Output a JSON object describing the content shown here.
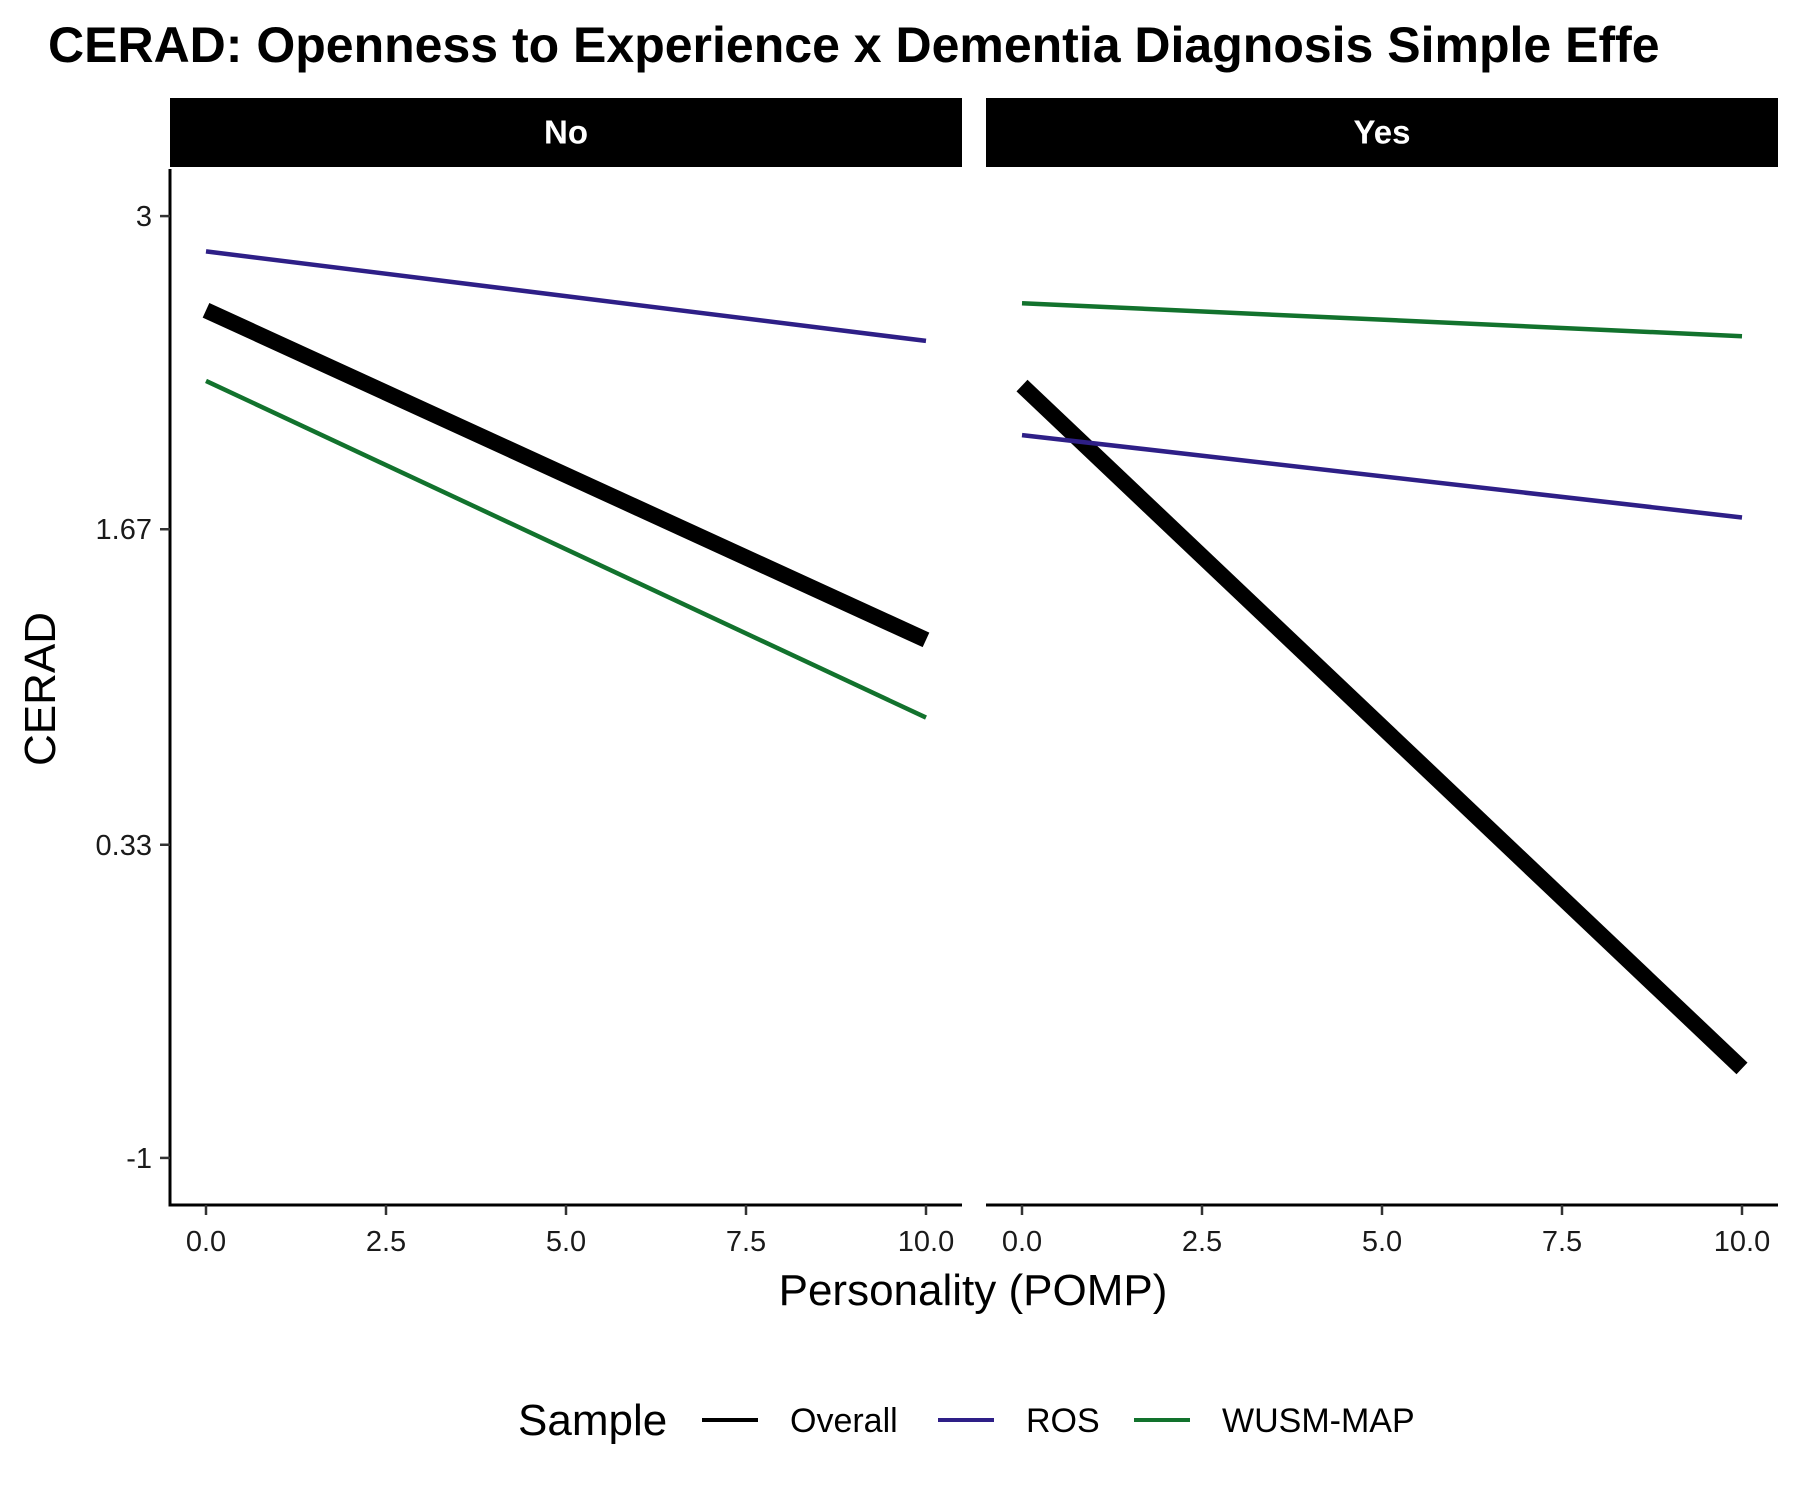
{
  "chart_data": {
    "type": "line",
    "title": "CERAD: Openness to Experience x Dementia Diagnosis Simple Effe",
    "xlabel": "Personality (POMP)",
    "ylabel": "CERAD",
    "x_ticks": [
      "0.0",
      "2.5",
      "5.0",
      "7.5",
      "10.0"
    ],
    "y_ticks": [
      "3",
      "1.67",
      "0.33",
      "-1"
    ],
    "xlim": [
      -0.5,
      10.5
    ],
    "ylim": [
      -1.2,
      3.2
    ],
    "grid": false,
    "legend": {
      "title": "Sample",
      "position": "bottom",
      "entries": [
        "Overall",
        "ROS",
        "WUSM-MAP"
      ]
    },
    "panels": [
      {
        "label": "No",
        "series": [
          {
            "name": "Overall",
            "color": "#000000",
            "x": [
              0,
              10
            ],
            "y": [
              2.6,
              1.2
            ]
          },
          {
            "name": "ROS",
            "color": "#2E1F87",
            "x": [
              0,
              10
            ],
            "y": [
              2.85,
              2.47
            ]
          },
          {
            "name": "WUSM-MAP",
            "color": "#12722D",
            "x": [
              0,
              10
            ],
            "y": [
              2.3,
              0.87
            ]
          }
        ]
      },
      {
        "label": "Yes",
        "series": [
          {
            "name": "Overall",
            "color": "#000000",
            "x": [
              0,
              10
            ],
            "y": [
              2.28,
              -0.62
            ]
          },
          {
            "name": "ROS",
            "color": "#2E1F87",
            "x": [
              0,
              10
            ],
            "y": [
              2.07,
              1.72
            ]
          },
          {
            "name": "WUSM-MAP",
            "color": "#12722D",
            "x": [
              0,
              10
            ],
            "y": [
              2.63,
              2.49
            ]
          }
        ]
      }
    ]
  }
}
